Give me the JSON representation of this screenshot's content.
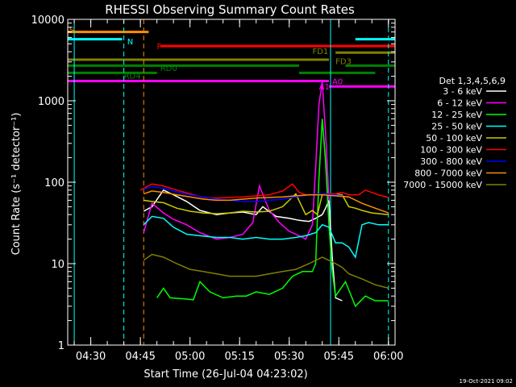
{
  "chart_data": {
    "type": "line",
    "title": "RHESSI Observing Summary Count Rates",
    "xlabel": "Start Time (26-Jul-04 04:23:02)",
    "ylabel": "Count Rate (s⁻¹ detector⁻¹)",
    "yscale": "log",
    "xlim": [
      "04:23:02",
      "06:02:00"
    ],
    "ylim": [
      1,
      10000
    ],
    "x_ticks": [
      "04:30",
      "04:45",
      "05:00",
      "05:15",
      "05:30",
      "05:45",
      "06:00"
    ],
    "y_ticks": [
      "1",
      "10",
      "100",
      "1000",
      "10000"
    ],
    "legend_title": "Det 1,3,4,5,6,9",
    "legend_position": "right",
    "timestamp": "19-Oct-2021 09:02",
    "series": [
      {
        "name": "3 - 6 keV",
        "color": "#ffffff",
        "x": [
          "04:46:00",
          "04:48:30",
          "04:52:00",
          "04:55:00",
          "04:59:00",
          "05:03:00",
          "05:08:00",
          "05:12:00",
          "05:16:00",
          "05:20:00",
          "05:22:00",
          "05:26:00",
          "05:30:00",
          "05:33:00",
          "05:36:00",
          "05:38:00",
          "05:40:00",
          "05:41:00",
          "05:42:00",
          "05:43:00",
          "05:44:00",
          "05:46:00"
        ],
        "values": [
          44,
          50,
          80,
          70,
          58,
          45,
          40,
          42,
          43,
          40,
          50,
          38,
          36,
          34,
          33,
          36,
          40,
          48,
          60,
          12,
          3.8,
          3.5
        ]
      },
      {
        "name": "6 - 12 keV",
        "color": "#ff00ff",
        "x": [
          "04:46:00",
          "04:48:30",
          "04:52:00",
          "04:55:00",
          "04:59:00",
          "05:03:00",
          "05:08:00",
          "05:12:00",
          "05:16:00",
          "05:19:00",
          "05:21:00",
          "05:24:00",
          "05:27:00",
          "05:30:00",
          "05:33:00",
          "05:35:00",
          "05:37:00",
          "05:38:00",
          "05:39:00",
          "05:40:00",
          "05:41:00",
          "05:42:00"
        ],
        "values": [
          24,
          55,
          42,
          35,
          30,
          24,
          20,
          21,
          23,
          32,
          90,
          45,
          32,
          25,
          22,
          20,
          30,
          150,
          900,
          1700,
          400,
          60
        ]
      },
      {
        "name": "12 - 25 keV",
        "color": "#00ff00",
        "x": [
          "04:50:00",
          "04:52:00",
          "04:54:00",
          "04:58:00",
          "05:01:00",
          "05:03:00",
          "05:06:00",
          "05:10:00",
          "05:14:00",
          "05:17:00",
          "05:20:00",
          "05:24:00",
          "05:28:00",
          "05:31:00",
          "05:34:00",
          "05:37:00",
          "05:38:00",
          "05:39:00",
          "05:40:00",
          "05:41:00",
          "05:42:00",
          "05:43:00",
          "05:44:00",
          "05:47:00",
          "05:50:00",
          "05:53:00",
          "05:56:00",
          "06:00:00"
        ],
        "values": [
          3.8,
          5,
          3.8,
          3.7,
          3.6,
          6,
          4.5,
          3.8,
          4,
          4,
          4.5,
          4.2,
          5,
          7,
          8,
          8,
          10,
          110,
          600,
          180,
          30,
          8,
          4,
          6,
          3,
          4,
          3.5,
          3.5
        ]
      },
      {
        "name": "25 - 50 keV",
        "color": "#00ffff",
        "x": [
          "04:46:00",
          "04:48:30",
          "04:52:00",
          "04:55:00",
          "04:59:00",
          "05:03:00",
          "05:08:00",
          "05:12:00",
          "05:16:00",
          "05:20:00",
          "05:24:00",
          "05:28:00",
          "05:32:00",
          "05:35:00",
          "05:38:00",
          "05:40:00",
          "05:42:00",
          "05:44:00",
          "05:46:00",
          "05:48:00",
          "05:50:00",
          "05:52:00",
          "05:54:00",
          "05:57:00",
          "06:00:00"
        ],
        "values": [
          30,
          38,
          36,
          28,
          23,
          22,
          21,
          21,
          20,
          21,
          20,
          20,
          21,
          22,
          24,
          30,
          28,
          18,
          18,
          16,
          12,
          30,
          32,
          30,
          30
        ]
      },
      {
        "name": "50 - 100 keV",
        "color": "#cccc00",
        "x": [
          "04:46:00",
          "04:48:30",
          "04:52:00",
          "04:56:00",
          "05:00:00",
          "05:04:00",
          "05:08:00",
          "05:12:00",
          "05:16:00",
          "05:20:00",
          "05:24:00",
          "05:28:00",
          "05:32:00",
          "05:35:00",
          "05:37:00",
          "05:38:30",
          "05:40:00",
          "05:43:00",
          "05:46:00",
          "05:48:00",
          "05:50:00",
          "05:52:00",
          "05:55:00",
          "06:00:00"
        ],
        "values": [
          60,
          58,
          56,
          48,
          44,
          42,
          41,
          42,
          44,
          43,
          44,
          50,
          72,
          40,
          45,
          40,
          70,
          72,
          70,
          50,
          48,
          45,
          42,
          40
        ]
      },
      {
        "name": "100 - 300 keV",
        "color": "#ff0000",
        "x": [
          "04:45:00",
          "04:48:30",
          "04:52:00",
          "04:56:00",
          "05:00:00",
          "05:04:00",
          "05:08:00",
          "05:12:00",
          "05:16:00",
          "05:20:00",
          "05:24:00",
          "05:28:00",
          "05:31:00",
          "05:33:00",
          "05:35:00",
          "05:38:00",
          "05:41:00",
          "05:44:00",
          "05:46:00",
          "05:48:00",
          "05:51:00",
          "05:53:00",
          "05:57:00",
          "06:00:00"
        ],
        "values": [
          80,
          95,
          90,
          80,
          72,
          65,
          64,
          65,
          66,
          68,
          70,
          78,
          95,
          75,
          70,
          70,
          72,
          72,
          75,
          70,
          70,
          80,
          70,
          65
        ]
      },
      {
        "name": "300 - 800 keV",
        "color": "#0000ff",
        "x": [
          "04:46:00",
          "04:48:30",
          "04:52:00",
          "04:56:00",
          "05:00:00",
          "05:04:00",
          "05:08:00",
          "05:12:00",
          "05:16:00",
          "05:20:00",
          "05:24:00",
          "05:28:00",
          "05:32:00",
          "05:36:00",
          "05:40:00",
          "05:44:00",
          "05:46:00",
          "05:48:00"
        ],
        "values": [
          82,
          88,
          84,
          76,
          70,
          66,
          62,
          60,
          58,
          58,
          60,
          62,
          66,
          70,
          72,
          70,
          68,
          65
        ]
      },
      {
        "name": "800 - 7000 keV",
        "color": "#ff8c00",
        "x": [
          "04:46:00",
          "04:48:30",
          "04:52:00",
          "04:56:00",
          "05:00:00",
          "05:04:00",
          "05:08:00",
          "05:12:00",
          "05:16:00",
          "05:20:00",
          "05:24:00",
          "05:28:00",
          "05:32:00",
          "05:36:00",
          "05:40:00",
          "05:44:00",
          "05:48:00",
          "05:52:00",
          "05:56:00",
          "06:00:00"
        ],
        "values": [
          72,
          78,
          75,
          70,
          66,
          62,
          60,
          60,
          62,
          64,
          65,
          66,
          68,
          70,
          70,
          68,
          66,
          55,
          48,
          42
        ]
      },
      {
        "name": "7000 - 15000 keV",
        "color": "#808000",
        "x": [
          "04:46:00",
          "04:48:30",
          "04:52:00",
          "04:56:00",
          "05:00:00",
          "05:04:00",
          "05:08:00",
          "05:12:00",
          "05:16:00",
          "05:20:00",
          "05:24:00",
          "05:28:00",
          "05:32:00",
          "05:36:00",
          "05:40:00",
          "05:44:00",
          "05:46:00",
          "05:48:00",
          "05:52:00",
          "05:56:00",
          "06:00:00"
        ],
        "values": [
          11,
          13,
          12,
          10,
          8.5,
          8,
          7.5,
          7,
          7,
          7,
          7.5,
          8,
          8.5,
          10,
          12,
          10,
          9,
          7.5,
          6.5,
          5.5,
          5
        ]
      }
    ],
    "intervals": [
      {
        "label": "S",
        "color": "#ff8c00",
        "start": "04:23:02",
        "end": "04:47:30",
        "value": 7000
      },
      {
        "label": "N",
        "color": "#00ffff",
        "start": "04:23:02",
        "end": "04:39:30",
        "value": 5700
      },
      {
        "label": "N",
        "color": "#00ffff",
        "start": "05:50:00",
        "end": "06:02:00",
        "value": 5700
      },
      {
        "label": "F",
        "color": "#ff0000",
        "start": "04:51:00",
        "end": "06:02:00",
        "value": 4700
      },
      {
        "label": "FD1",
        "color": "#808000",
        "start": "05:44:00",
        "end": "06:02:00",
        "value": 3900
      },
      {
        "label": "FD3",
        "color": "#808000",
        "start": "04:23:02",
        "end": "05:42:00",
        "value": 3200
      },
      {
        "label": "RD0",
        "color": "#008000",
        "start": "04:23:02",
        "end": "05:33:00",
        "value": 2700
      },
      {
        "label": "RD0",
        "color": "#008000",
        "start": "05:47:00",
        "end": "06:02:00",
        "value": 2700
      },
      {
        "label": "RD4",
        "color": "#008000",
        "start": "04:23:02",
        "end": "04:50:00",
        "value": 2200
      },
      {
        "label": "RD4",
        "color": "#008000",
        "start": "05:33:00",
        "end": "05:56:00",
        "value": 2200
      },
      {
        "label": "A1",
        "color": "#ff00ff",
        "start": "04:23:02",
        "end": "05:42:00",
        "value": 1750
      },
      {
        "label": "A0",
        "color": "#ff00ff",
        "start": "05:42:00",
        "end": "06:02:00",
        "value": 1500
      }
    ],
    "interval_labels": [
      {
        "text": "S",
        "color": "#ff8c00",
        "at": "04:23:30",
        "value": 7500
      },
      {
        "text": "N",
        "color": "#00ffff",
        "at": "04:41:00",
        "value": 5400
      },
      {
        "text": "F",
        "color": "#ff0000",
        "at": "04:50:00",
        "value": 4700
      },
      {
        "text": "FD1",
        "color": "#808000",
        "at": "05:37:00",
        "value": 4100
      },
      {
        "text": "FD3",
        "color": "#808000",
        "at": "05:44:00",
        "value": 3100
      },
      {
        "text": "RD0",
        "color": "#008000",
        "at": "04:51:00",
        "value": 2550
      },
      {
        "text": "RD4",
        "color": "#008000",
        "at": "04:40:00",
        "value": 2050
      },
      {
        "text": "A1",
        "color": "#ff00ff",
        "at": "05:39:00",
        "value": 1500
      },
      {
        "text": "A0",
        "color": "#ff00ff",
        "at": "05:43:00",
        "value": 1750
      }
    ],
    "markers": [
      {
        "time": "04:25:00",
        "color": "#00ffff",
        "style": "solid"
      },
      {
        "time": "04:40:00",
        "color": "#00ffff",
        "style": "dashed"
      },
      {
        "time": "04:46:00",
        "color": "#ff8c00",
        "style": "dashed"
      },
      {
        "time": "05:42:30",
        "color": "#00ffff",
        "style": "solid"
      },
      {
        "time": "06:00:00",
        "color": "#00ffff",
        "style": "dashed"
      }
    ]
  }
}
